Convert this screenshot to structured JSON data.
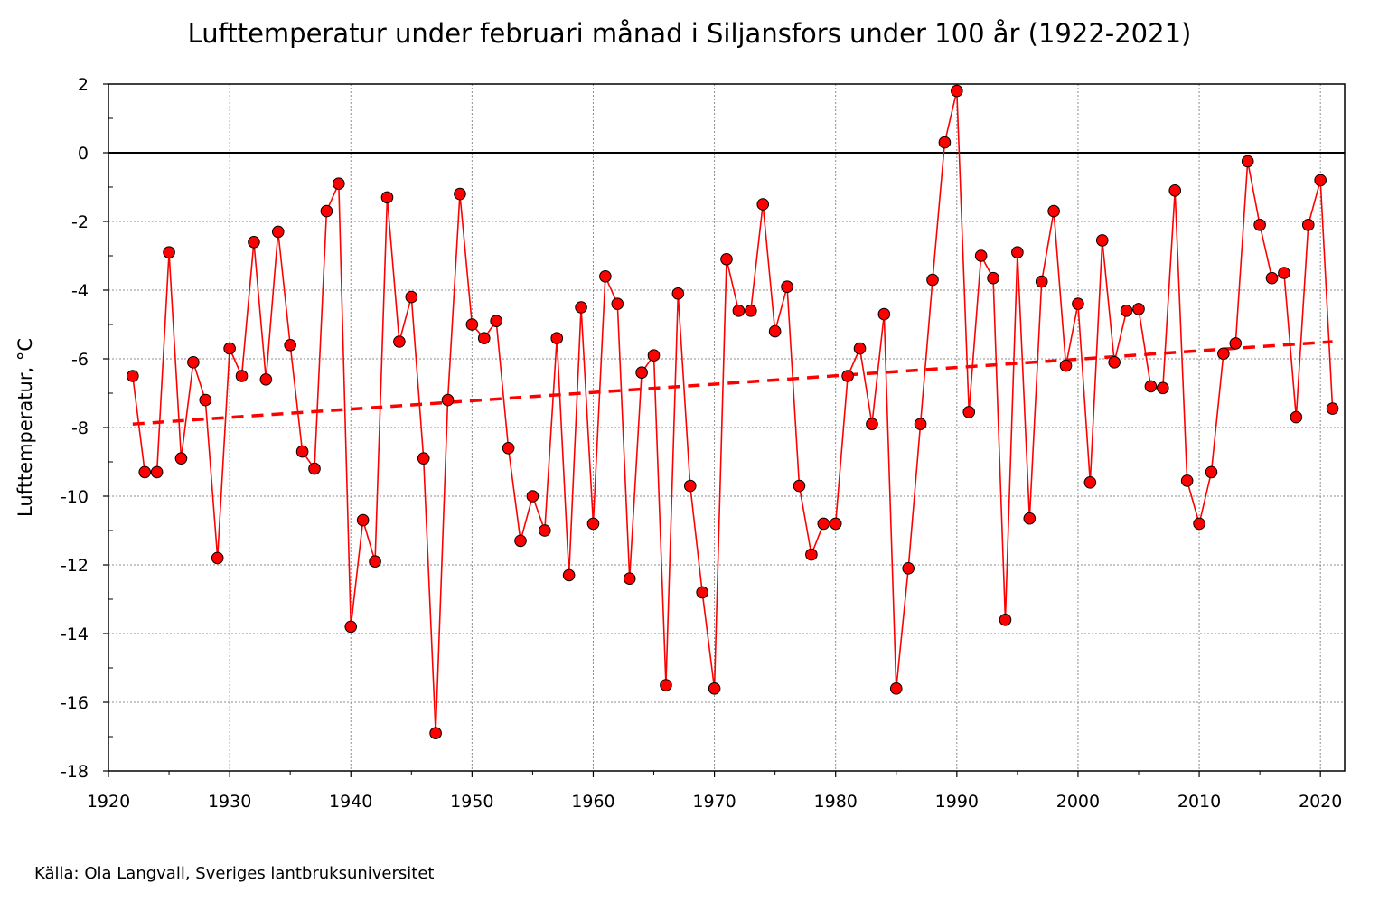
{
  "chart_data": {
    "type": "line",
    "title": "Lufttemperatur under februari månad i Siljansfors under 100 år (1922-2021)",
    "xlabel": "",
    "ylabel": "Lufttemperatur, °C",
    "source": "Källa: Ola Langvall, Sveriges lantbruksuniversitet",
    "xlim": [
      1920,
      2022
    ],
    "ylim": [
      -18,
      2
    ],
    "xticks": [
      1920,
      1930,
      1940,
      1950,
      1960,
      1970,
      1980,
      1990,
      2000,
      2010,
      2020
    ],
    "yticks": [
      2,
      0,
      -2,
      -4,
      -6,
      -8,
      -10,
      -12,
      -14,
      -16,
      -18
    ],
    "grid": true,
    "zero_line": true,
    "series": [
      {
        "line_color": "#ff0000",
        "marker_fill": "#ff0000",
        "marker_edge": "#000000",
        "x": [
          1922,
          1923,
          1924,
          1925,
          1926,
          1927,
          1928,
          1929,
          1930,
          1931,
          1932,
          1933,
          1934,
          1935,
          1936,
          1937,
          1938,
          1939,
          1940,
          1941,
          1942,
          1943,
          1944,
          1945,
          1946,
          1947,
          1948,
          1949,
          1950,
          1951,
          1952,
          1953,
          1954,
          1955,
          1956,
          1957,
          1958,
          1959,
          1960,
          1961,
          1962,
          1963,
          1964,
          1965,
          1966,
          1967,
          1968,
          1969,
          1970,
          1971,
          1972,
          1973,
          1974,
          1975,
          1976,
          1977,
          1978,
          1979,
          1980,
          1981,
          1982,
          1983,
          1984,
          1985,
          1986,
          1987,
          1988,
          1989,
          1990,
          1991,
          1992,
          1993,
          1994,
          1995,
          1996,
          1997,
          1998,
          1999,
          2000,
          2001,
          2002,
          2003,
          2004,
          2005,
          2006,
          2007,
          2008,
          2009,
          2010,
          2011,
          2012,
          2013,
          2014,
          2015,
          2016,
          2017,
          2018,
          2019,
          2020,
          2021
        ],
        "values": [
          -6.5,
          -9.3,
          -9.3,
          -2.9,
          -8.9,
          -6.1,
          -7.2,
          -11.8,
          -5.7,
          -6.5,
          -2.6,
          -6.6,
          -2.3,
          -5.6,
          -8.7,
          -9.2,
          -1.7,
          -0.9,
          -13.8,
          -10.7,
          -11.9,
          -1.3,
          -5.5,
          -4.2,
          -8.9,
          -16.9,
          -7.2,
          -1.2,
          -5.0,
          -5.4,
          -4.9,
          -8.6,
          -11.3,
          -10.0,
          -11.0,
          -5.4,
          -12.3,
          -4.5,
          -10.8,
          -3.6,
          -4.4,
          -12.4,
          -6.4,
          -5.9,
          -15.5,
          -4.1,
          -9.7,
          -12.8,
          -15.6,
          -3.1,
          -4.6,
          -4.6,
          -1.5,
          -5.2,
          -3.9,
          -9.7,
          -11.7,
          -10.8,
          -10.8,
          -6.5,
          -5.7,
          -7.9,
          -4.7,
          -15.6,
          -12.1,
          -7.9,
          -3.7,
          0.3,
          1.8,
          -7.55,
          -3.0,
          -3.65,
          -13.6,
          -2.9,
          -10.65,
          -3.75,
          -1.7,
          -6.2,
          -4.4,
          -9.6,
          -2.55,
          -6.1,
          -4.6,
          -4.55,
          -6.8,
          -6.85,
          -1.1,
          -9.55,
          -10.8,
          -9.3,
          -5.85,
          -5.55,
          -0.25,
          -2.1,
          -3.65,
          -3.5,
          -7.7,
          -2.1,
          -0.8,
          -7.45
        ]
      }
    ],
    "trend": {
      "style": "dashed",
      "color": "#ff0000",
      "x": [
        1922,
        2021
      ],
      "y": [
        -7.9,
        -5.5
      ]
    }
  }
}
